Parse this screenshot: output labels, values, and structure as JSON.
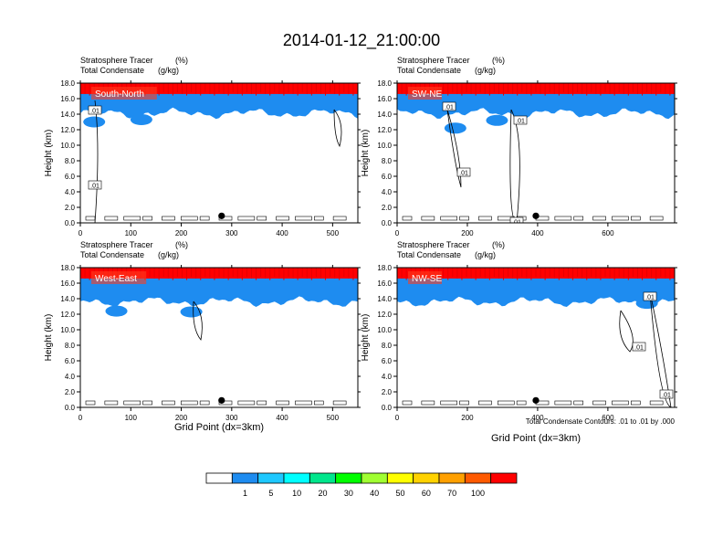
{
  "figure": {
    "title": "2014-01-12_21:00:00",
    "contour_note": "Total Condensate Contours: .01 to .01 by .000",
    "x_axis_label": "Grid Point (dx=3km)",
    "y_axis_label": "Height (km)"
  },
  "panel_header": {
    "line1_name": "Stratosphere Tracer",
    "line1_unit": "(%)",
    "line2_name": "Total Condensate",
    "line2_unit": "(g/kg)"
  },
  "colorbar": {
    "labels": [
      "1",
      "5",
      "10",
      "20",
      "30",
      "40",
      "50",
      "60",
      "70",
      "100"
    ],
    "colors": [
      "#ffffff",
      "#1e8cf0",
      "#1ec8ff",
      "#00ffff",
      "#00e68c",
      "#00ff00",
      "#a0ff32",
      "#ffff00",
      "#ffd200",
      "#ffa000",
      "#ff5a00",
      "#ff0000"
    ]
  },
  "chart_data": [
    {
      "type": "heatmap",
      "panel": "South-North",
      "x_range": [
        0,
        550
      ],
      "ylim": [
        0,
        18
      ],
      "x_ticks": [
        "0",
        "100",
        "200",
        "300",
        "400",
        "500"
      ],
      "x_tick_values": [
        0,
        100,
        200,
        300,
        400,
        500
      ],
      "y_ticks": [
        "0.0",
        "2.0",
        "4.0",
        "6.0",
        "8.0",
        "10.0",
        "12.0",
        "14.0",
        "16.0",
        "18.0"
      ],
      "tracer_base_km": 14.5,
      "marker_x": 280,
      "contour_labels": [
        ".01",
        ".01"
      ]
    },
    {
      "type": "heatmap",
      "panel": "SW-NE",
      "x_range": [
        0,
        790
      ],
      "ylim": [
        0,
        18
      ],
      "x_ticks": [
        "0",
        "200",
        "400",
        "600"
      ],
      "x_tick_values": [
        0,
        200,
        400,
        600
      ],
      "y_ticks": [
        "0.0",
        "2.0",
        "4.0",
        "6.0",
        "8.0",
        "10.0",
        "12.0",
        "14.0",
        "16.0",
        "18.0"
      ],
      "tracer_base_km": 14.5,
      "marker_x": 395,
      "contour_labels": [
        ".01",
        ".01",
        ".01",
        ".01"
      ]
    },
    {
      "type": "heatmap",
      "panel": "West-East",
      "x_range": [
        0,
        550
      ],
      "ylim": [
        0,
        18
      ],
      "x_ticks": [
        "0",
        "100",
        "200",
        "300",
        "400",
        "500"
      ],
      "x_tick_values": [
        0,
        100,
        200,
        300,
        400,
        500
      ],
      "y_ticks": [
        "0.0",
        "2.0",
        "4.0",
        "6.0",
        "8.0",
        "10.0",
        "12.0",
        "14.0",
        "16.0",
        "18.0"
      ],
      "tracer_base_km": 14.0,
      "marker_x": 280,
      "contour_labels": []
    },
    {
      "type": "heatmap",
      "panel": "NW-SE",
      "x_range": [
        0,
        790
      ],
      "ylim": [
        0,
        18
      ],
      "x_ticks": [
        "0",
        "200",
        "400",
        "600"
      ],
      "x_tick_values": [
        0,
        200,
        400,
        600
      ],
      "y_ticks": [
        "0.0",
        "2.0",
        "4.0",
        "6.0",
        "8.0",
        "10.0",
        "12.0",
        "14.0",
        "16.0",
        "18.0"
      ],
      "tracer_base_km": 14.0,
      "marker_x": 395,
      "contour_labels": [
        ".01",
        ".01",
        ".01"
      ]
    }
  ]
}
